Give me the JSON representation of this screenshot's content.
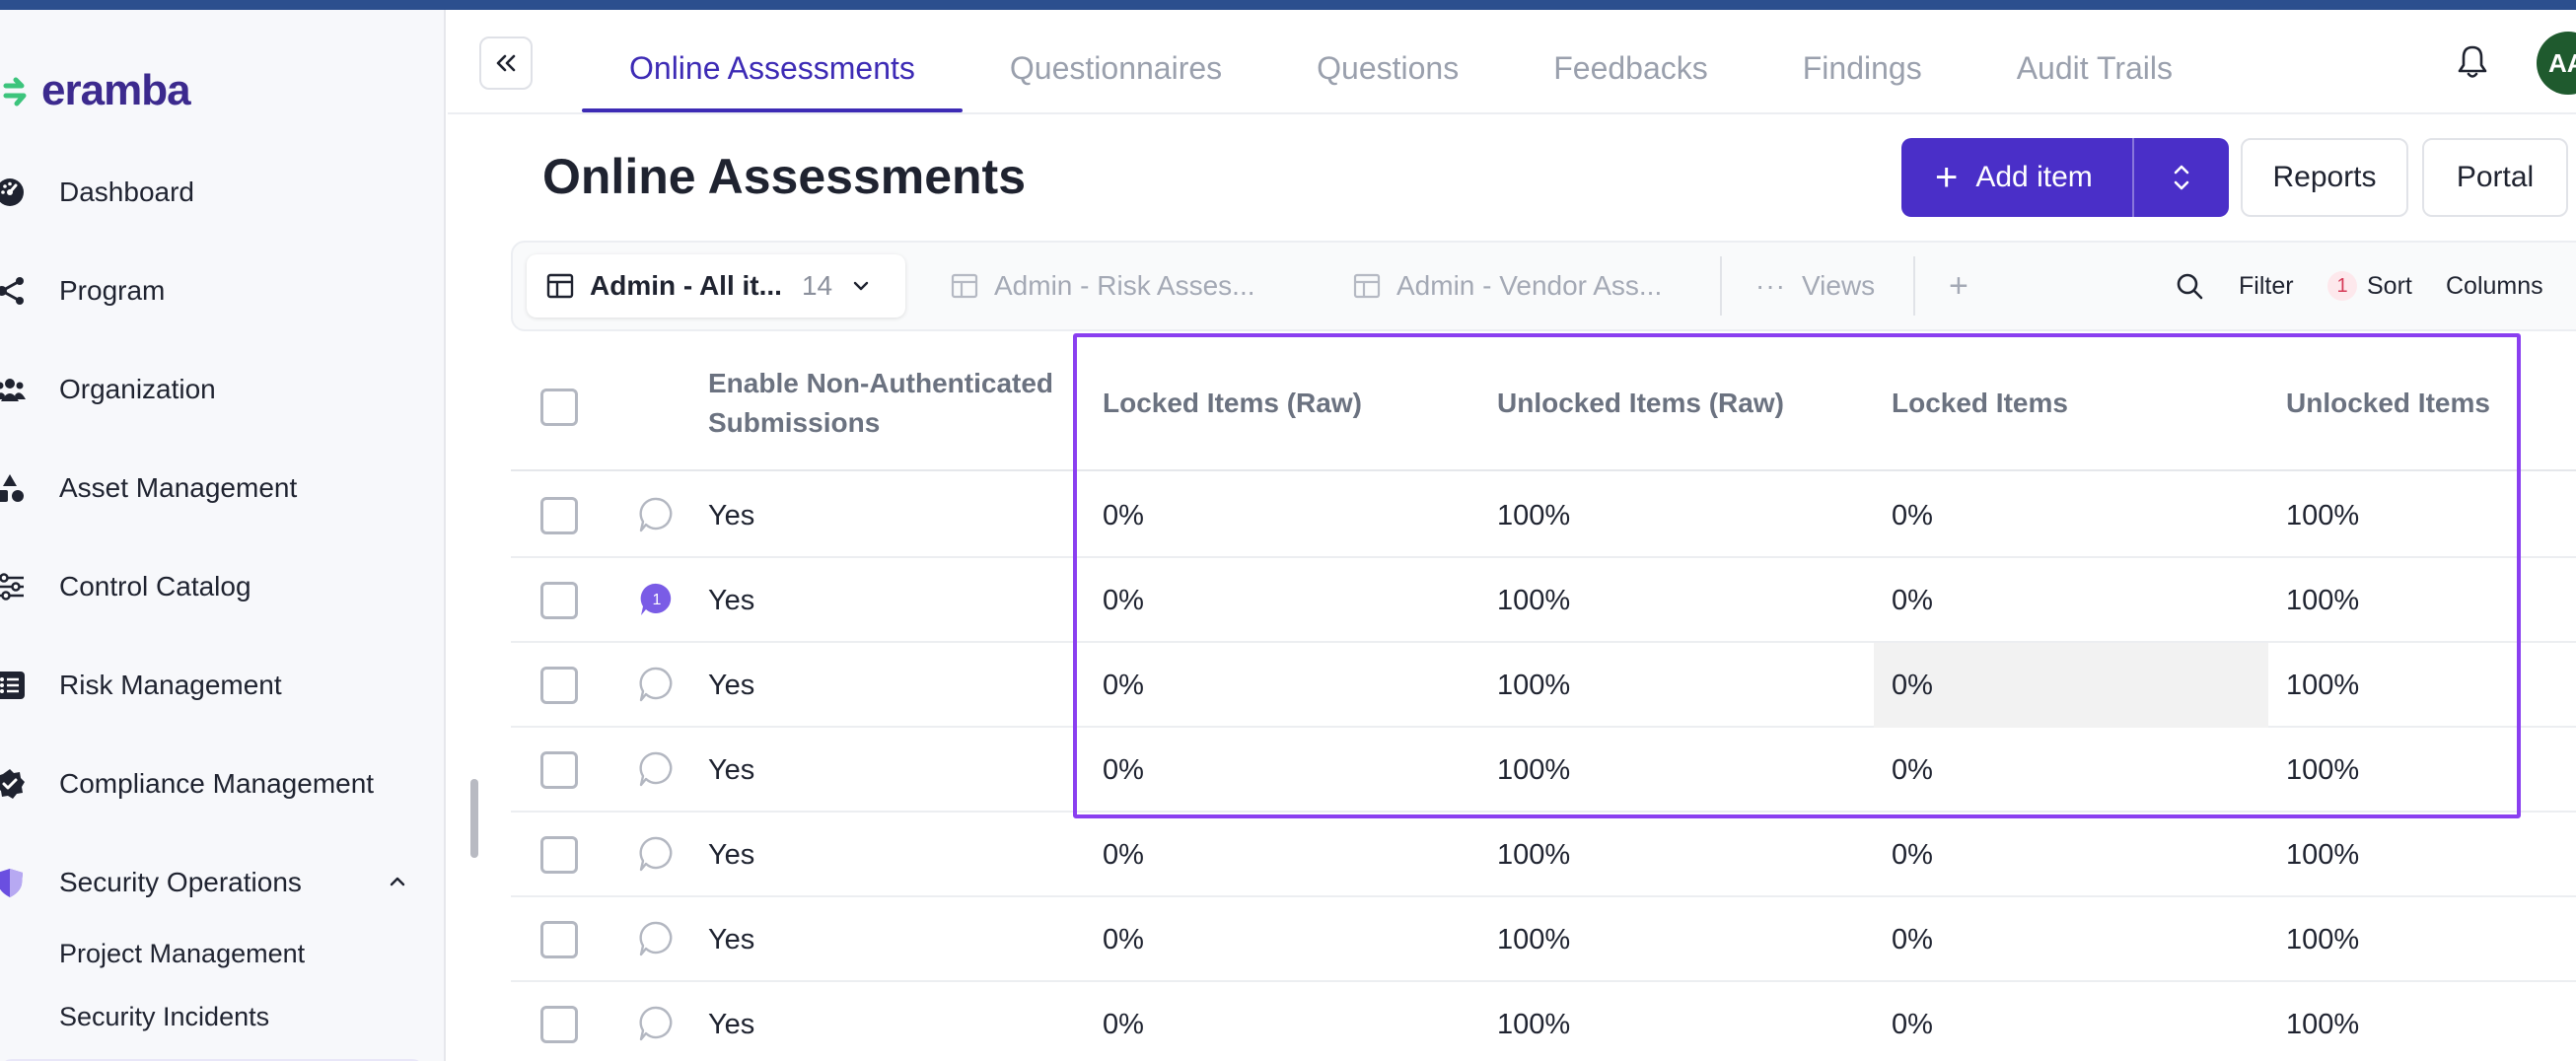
{
  "brand": {
    "logo_text": "eramba"
  },
  "sidebar": {
    "items": [
      {
        "label": "Dashboard",
        "icon": "dashboard-gauge-icon"
      },
      {
        "label": "Program",
        "icon": "program-network-icon"
      },
      {
        "label": "Organization",
        "icon": "users-icon"
      },
      {
        "label": "Asset Management",
        "icon": "shapes-icon"
      },
      {
        "label": "Control Catalog",
        "icon": "sliders-icon"
      },
      {
        "label": "Risk Management",
        "icon": "list-icon"
      },
      {
        "label": "Compliance Management",
        "icon": "check-badge-icon"
      },
      {
        "label": "Security Operations",
        "icon": "shield-icon",
        "expanded": true
      }
    ],
    "subitems": [
      {
        "label": "Project Management"
      },
      {
        "label": "Security Incidents"
      }
    ]
  },
  "header": {
    "tabs": [
      {
        "label": "Online Assessments",
        "active": true
      },
      {
        "label": "Questionnaires",
        "active": false
      },
      {
        "label": "Questions",
        "active": false
      },
      {
        "label": "Feedbacks",
        "active": false
      },
      {
        "label": "Findings",
        "active": false
      },
      {
        "label": "Audit Trails",
        "active": false
      }
    ],
    "avatar_initials": "AA"
  },
  "page": {
    "title": "Online Assessments",
    "add_item_label": "Add item",
    "reports_label": "Reports",
    "portal_label": "Portal"
  },
  "views": {
    "active_view": {
      "label": "Admin - All it...",
      "count": "14"
    },
    "other_views": [
      {
        "label": "Admin - Risk Asses..."
      },
      {
        "label": "Admin - Vendor Ass..."
      }
    ],
    "views_label": "Views",
    "search_label": "",
    "filter_label": "Filter",
    "sort_count": "1",
    "sort_label": "Sort",
    "columns_label": "Columns"
  },
  "table": {
    "columns": [
      "Enable Non-Authenticated Submissions",
      "Locked Items (Raw)",
      "Unlocked Items (Raw)",
      "Locked Items",
      "Unlocked Items"
    ],
    "rows": [
      {
        "comments": 0,
        "enable": "Yes",
        "locked_raw": "0%",
        "unlocked_raw": "100%",
        "locked": "0%",
        "unlocked": "100%"
      },
      {
        "comments": 1,
        "enable": "Yes",
        "locked_raw": "0%",
        "unlocked_raw": "100%",
        "locked": "0%",
        "unlocked": "100%"
      },
      {
        "comments": 0,
        "enable": "Yes",
        "locked_raw": "0%",
        "unlocked_raw": "100%",
        "locked": "0%",
        "unlocked": "100%"
      },
      {
        "comments": 0,
        "enable": "Yes",
        "locked_raw": "0%",
        "unlocked_raw": "100%",
        "locked": "0%",
        "unlocked": "100%"
      },
      {
        "comments": 0,
        "enable": "Yes",
        "locked_raw": "0%",
        "unlocked_raw": "100%",
        "locked": "0%",
        "unlocked": "100%"
      },
      {
        "comments": 0,
        "enable": "Yes",
        "locked_raw": "0%",
        "unlocked_raw": "100%",
        "locked": "0%",
        "unlocked": "100%"
      },
      {
        "comments": 0,
        "enable": "Yes",
        "locked_raw": "0%",
        "unlocked_raw": "100%",
        "locked": "0%",
        "unlocked": "100%"
      }
    ]
  },
  "colors": {
    "accent": "#4a2fc8",
    "tab_active": "#3d2bb5",
    "highlight_outline": "#8a3ff0",
    "top_bar": "#2c4f8e",
    "avatar_bg": "#1f5a2e"
  }
}
